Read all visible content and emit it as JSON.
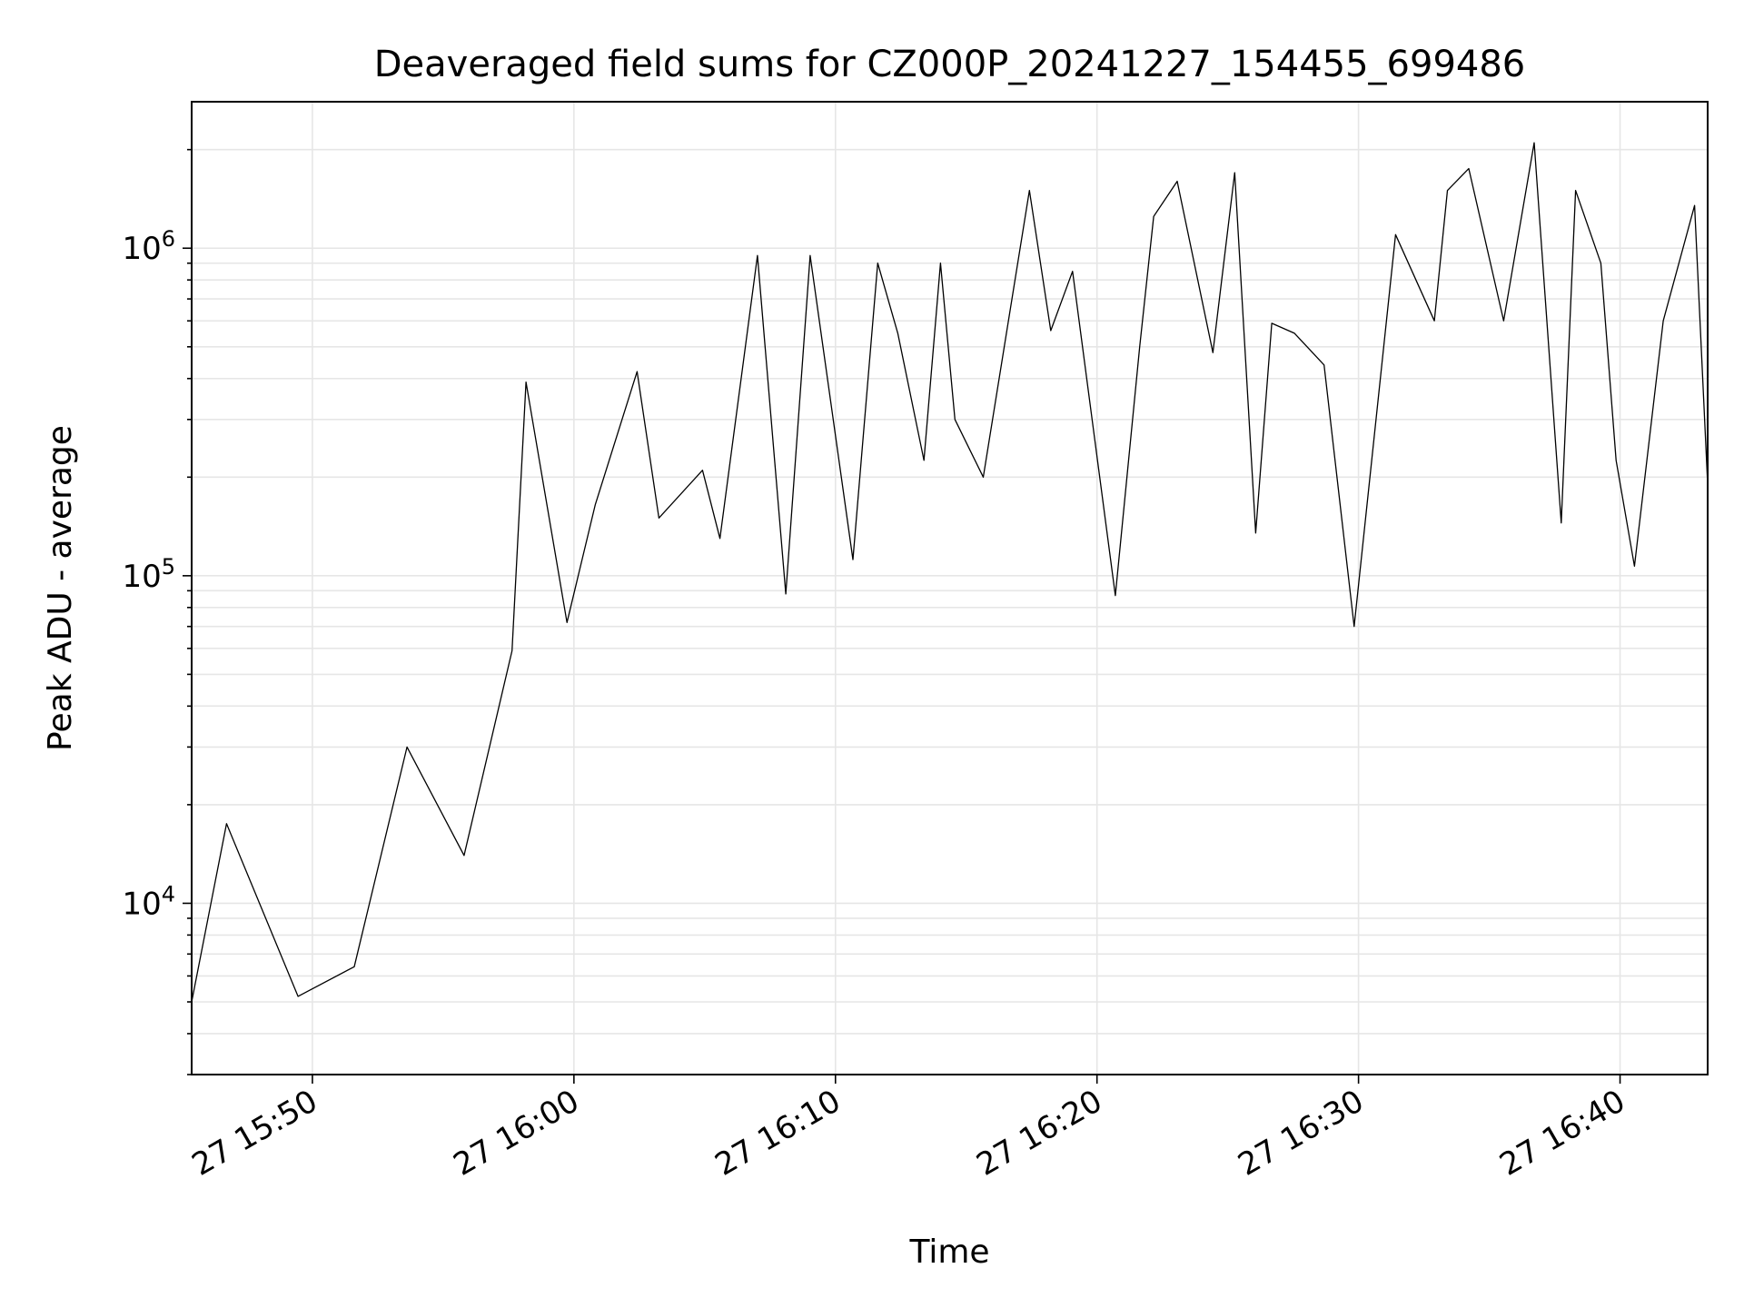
{
  "chart_data": {
    "type": "line",
    "title": "Deaveraged field sums for CZ000P_20241227_154455_699486",
    "xlabel": "Time",
    "ylabel": "Peak ADU - average",
    "y_scale": "log",
    "ylim": [
      3000,
      2800000
    ],
    "xlim": [
      "2024-12-27 15:45:23",
      "2024-12-27 16:43:21"
    ],
    "x_ticks": [
      "2024-12-27 15:50",
      "2024-12-27 16:00",
      "2024-12-27 16:10",
      "2024-12-27 16:20",
      "2024-12-27 16:30",
      "2024-12-27 16:40"
    ],
    "x_tick_labels": [
      "27 15:50",
      "27 16:00",
      "27 16:10",
      "27 16:20",
      "27 16:30",
      "27 16:40"
    ],
    "y_ticks": [
      10000,
      100000,
      1000000
    ],
    "y_tick_labels": [
      {
        "base": "10",
        "exp": "4"
      },
      {
        "base": "10",
        "exp": "5"
      },
      {
        "base": "10",
        "exp": "6"
      }
    ],
    "grid": "major and minor",
    "line_color": "#000000",
    "series": [
      {
        "x": [
          "2024-12-27 15:45:23",
          "2024-12-27 15:46:43",
          "2024-12-27 15:49:27",
          "2024-12-27 15:51:36",
          "2024-12-27 15:53:37",
          "2024-12-27 15:55:48",
          "2024-12-27 15:57:38",
          "2024-12-27 15:58:10",
          "2024-12-27 15:59:44",
          "2024-12-27 16:00:49",
          "2024-12-27 16:02:25",
          "2024-12-27 16:03:15",
          "2024-12-27 16:04:55",
          "2024-12-27 16:05:35",
          "2024-12-27 16:07:01",
          "2024-12-27 16:08:06",
          "2024-12-27 16:09:02",
          "2024-12-27 16:10:40",
          "2024-12-27 16:11:37",
          "2024-12-27 16:12:23",
          "2024-12-27 16:13:23",
          "2024-12-27 16:14:01",
          "2024-12-27 16:14:34",
          "2024-12-27 16:15:39",
          "2024-12-27 16:17:25",
          "2024-12-27 16:18:14",
          "2024-12-27 16:19:04",
          "2024-12-27 16:20:42",
          "2024-12-27 16:21:38",
          "2024-12-27 16:22:10",
          "2024-12-27 16:23:04",
          "2024-12-27 16:24:26",
          "2024-12-27 16:25:16",
          "2024-12-27 16:26:04",
          "2024-12-27 16:26:41",
          "2024-12-27 16:27:33",
          "2024-12-27 16:28:41",
          "2024-12-27 16:29:50",
          "2024-12-27 16:31:25",
          "2024-12-27 16:32:54",
          "2024-12-27 16:33:24",
          "2024-12-27 16:34:13",
          "2024-12-27 16:35:33",
          "2024-12-27 16:36:43",
          "2024-12-27 16:37:45",
          "2024-12-27 16:38:18",
          "2024-12-27 16:39:16",
          "2024-12-27 16:39:51",
          "2024-12-27 16:40:33",
          "2024-12-27 16:41:39",
          "2024-12-27 16:42:51",
          "2024-12-27 16:43:21"
        ],
        "y": [
          5000,
          17500,
          5200,
          6400,
          30000,
          14000,
          59000,
          390000,
          72000,
          165000,
          420000,
          150000,
          210000,
          130000,
          950000,
          88000,
          950000,
          112000,
          900000,
          550000,
          225000,
          900000,
          300000,
          200000,
          1500000,
          560000,
          850000,
          87000,
          500000,
          1250000,
          1600000,
          480000,
          1700000,
          135000,
          590000,
          550000,
          440000,
          70000,
          1100000,
          600000,
          1500000,
          1750000,
          600000,
          2100000,
          145000,
          1500000,
          900000,
          225000,
          107000,
          600000,
          1350000,
          190000
        ]
      }
    ]
  }
}
